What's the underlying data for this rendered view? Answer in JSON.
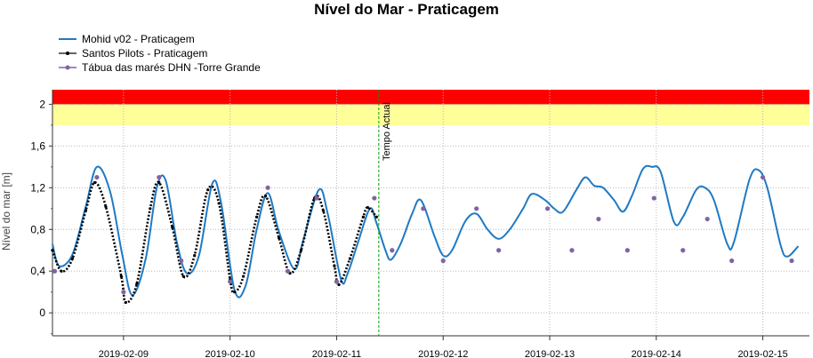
{
  "chart_data": {
    "type": "line",
    "title": "Nível do Mar - Praticagem",
    "xlabel": "",
    "ylabel": "Nível do mar [m]",
    "ylim": [
      -0.22,
      2.14
    ],
    "xlim": [
      "2019-02-08 08:00",
      "2019-02-15 10:30"
    ],
    "yticks": [
      "0",
      "0,4",
      "0,8",
      "1,2",
      "1,6",
      "2"
    ],
    "xticks": [
      "2019-02-09",
      "2019-02-10",
      "2019-02-11",
      "2019-02-12",
      "2019-02-13",
      "2019-02-14",
      "2019-02-15"
    ],
    "grid": true,
    "legend_position": "top-left",
    "bands": [
      {
        "from": 1.8,
        "to": 2.0,
        "color": "#ffff99"
      },
      {
        "from": 2.0,
        "to": 2.14,
        "color": "#ff0000"
      }
    ],
    "current_time": {
      "label": "Tempo Actual",
      "x": "2019-02-11 09:30",
      "color": "#00a000"
    },
    "series": [
      {
        "name": "Mohid v02 - Praticagem",
        "kind": "line",
        "color": "#1f7ac4",
        "points": [
          [
            "2019-02-08 08:00",
            0.66
          ],
          [
            "2019-02-08 09:30",
            0.45
          ],
          [
            "2019-02-08 12:30",
            0.56
          ],
          [
            "2019-02-08 15:30",
            1.02
          ],
          [
            "2019-02-08 18:00",
            1.4
          ],
          [
            "2019-02-08 21:00",
            1.16
          ],
          [
            "2019-02-08 23:45",
            0.55
          ],
          [
            "2019-02-09 02:00",
            0.17
          ],
          [
            "2019-02-09 05:00",
            0.52
          ],
          [
            "2019-02-09 07:30",
            1.2
          ],
          [
            "2019-02-09 09:30",
            1.27
          ],
          [
            "2019-02-09 12:00",
            0.68
          ],
          [
            "2019-02-09 14:15",
            0.38
          ],
          [
            "2019-02-09 17:00",
            0.55
          ],
          [
            "2019-02-09 20:00",
            1.24
          ],
          [
            "2019-02-09 22:00",
            1.05
          ],
          [
            "2019-02-10 01:00",
            0.22
          ],
          [
            "2019-02-10 03:30",
            0.26
          ],
          [
            "2019-02-10 06:00",
            0.8
          ],
          [
            "2019-02-10 08:30",
            1.15
          ],
          [
            "2019-02-10 11:00",
            0.78
          ],
          [
            "2019-02-10 14:30",
            0.42
          ],
          [
            "2019-02-10 16:30",
            0.7
          ],
          [
            "2019-02-10 20:00",
            1.18
          ],
          [
            "2019-02-10 22:00",
            0.95
          ],
          [
            "2019-02-11 01:00",
            0.32
          ],
          [
            "2019-02-11 02:30",
            0.38
          ],
          [
            "2019-02-11 05:00",
            0.7
          ],
          [
            "2019-02-11 07:30",
            1.0
          ],
          [
            "2019-02-11 09:00",
            0.86
          ],
          [
            "2019-02-11 11:00",
            0.6
          ],
          [
            "2019-02-11 12:15",
            0.51
          ],
          [
            "2019-02-11 14:30",
            0.67
          ],
          [
            "2019-02-11 17:00",
            0.95
          ],
          [
            "2019-02-11 19:00",
            1.08
          ],
          [
            "2019-02-11 22:00",
            0.74
          ],
          [
            "2019-02-12 00:00",
            0.55
          ],
          [
            "2019-02-12 02:00",
            0.6
          ],
          [
            "2019-02-12 05:00",
            0.88
          ],
          [
            "2019-02-12 07:30",
            0.95
          ],
          [
            "2019-02-12 10:00",
            0.8
          ],
          [
            "2019-02-12 12:30",
            0.71
          ],
          [
            "2019-02-12 15:00",
            0.8
          ],
          [
            "2019-02-12 18:00",
            1.0
          ],
          [
            "2019-02-12 20:00",
            1.14
          ],
          [
            "2019-02-12 23:00",
            1.08
          ],
          [
            "2019-02-13 01:00",
            1.0
          ],
          [
            "2019-02-13 03:00",
            0.97
          ],
          [
            "2019-02-13 06:00",
            1.18
          ],
          [
            "2019-02-13 08:00",
            1.3
          ],
          [
            "2019-02-13 10:00",
            1.22
          ],
          [
            "2019-02-13 12:00",
            1.2
          ],
          [
            "2019-02-13 14:30",
            1.08
          ],
          [
            "2019-02-13 16:30",
            0.97
          ],
          [
            "2019-02-13 18:30",
            1.12
          ],
          [
            "2019-02-13 21:00",
            1.38
          ],
          [
            "2019-02-13 23:00",
            1.4
          ],
          [
            "2019-02-14 01:00",
            1.35
          ],
          [
            "2019-02-14 04:00",
            0.87
          ],
          [
            "2019-02-14 06:00",
            0.92
          ],
          [
            "2019-02-14 09:00",
            1.18
          ],
          [
            "2019-02-14 11:00",
            1.2
          ],
          [
            "2019-02-14 13:00",
            1.08
          ],
          [
            "2019-02-14 16:00",
            0.66
          ],
          [
            "2019-02-14 17:30",
            0.68
          ],
          [
            "2019-02-14 21:00",
            1.28
          ],
          [
            "2019-02-14 23:00",
            1.37
          ],
          [
            "2019-02-15 01:00",
            1.2
          ],
          [
            "2019-02-15 04:00",
            0.65
          ],
          [
            "2019-02-15 05:30",
            0.54
          ],
          [
            "2019-02-15 08:00",
            0.64
          ]
        ]
      },
      {
        "name": "Santos Pilots - Praticagem",
        "kind": "dotted-line",
        "color": "#000000",
        "points": [
          [
            "2019-02-08 08:00",
            0.6
          ],
          [
            "2019-02-08 10:00",
            0.4
          ],
          [
            "2019-02-08 12:30",
            0.52
          ],
          [
            "2019-02-08 15:30",
            0.98
          ],
          [
            "2019-02-08 17:30",
            1.25
          ],
          [
            "2019-02-08 20:00",
            1.02
          ],
          [
            "2019-02-08 23:30",
            0.35
          ],
          [
            "2019-02-09 00:30",
            0.1
          ],
          [
            "2019-02-09 03:00",
            0.28
          ],
          [
            "2019-02-09 06:00",
            1.0
          ],
          [
            "2019-02-09 08:00",
            1.25
          ],
          [
            "2019-02-09 11:00",
            0.82
          ],
          [
            "2019-02-09 13:30",
            0.35
          ],
          [
            "2019-02-09 16:00",
            0.55
          ],
          [
            "2019-02-09 19:00",
            1.18
          ],
          [
            "2019-02-09 21:30",
            1.05
          ],
          [
            "2019-02-10 00:00",
            0.32
          ],
          [
            "2019-02-10 01:00",
            0.2
          ],
          [
            "2019-02-10 03:00",
            0.35
          ],
          [
            "2019-02-10 06:00",
            0.92
          ],
          [
            "2019-02-10 08:00",
            1.12
          ],
          [
            "2019-02-10 11:00",
            0.72
          ],
          [
            "2019-02-10 13:30",
            0.38
          ],
          [
            "2019-02-10 16:00",
            0.6
          ],
          [
            "2019-02-10 19:00",
            1.1
          ],
          [
            "2019-02-10 21:00",
            0.98
          ],
          [
            "2019-02-10 23:30",
            0.45
          ],
          [
            "2019-02-11 00:30",
            0.27
          ],
          [
            "2019-02-11 03:00",
            0.52
          ],
          [
            "2019-02-11 06:00",
            0.92
          ],
          [
            "2019-02-11 07:00",
            1.01
          ],
          [
            "2019-02-11 09:00",
            0.92
          ]
        ]
      },
      {
        "name": "Tábua das marés DHN -Torre Grande",
        "kind": "markers",
        "color": "#8064a2",
        "points": [
          [
            "2019-02-08 08:30",
            0.4
          ],
          [
            "2019-02-08 18:00",
            1.3
          ],
          [
            "2019-02-09 00:00",
            0.2
          ],
          [
            "2019-02-09 08:00",
            1.3
          ],
          [
            "2019-02-09 13:00",
            0.5
          ],
          [
            "2019-02-10 00:00",
            0.3
          ],
          [
            "2019-02-10 08:30",
            1.2
          ],
          [
            "2019-02-10 13:00",
            0.4
          ],
          [
            "2019-02-10 19:30",
            1.1
          ],
          [
            "2019-02-11 00:00",
            0.3
          ],
          [
            "2019-02-11 08:30",
            1.1
          ],
          [
            "2019-02-11 12:30",
            0.6
          ],
          [
            "2019-02-11 19:30",
            1.0
          ],
          [
            "2019-02-12 00:00",
            0.5
          ],
          [
            "2019-02-12 07:30",
            1.0
          ],
          [
            "2019-02-12 12:30",
            0.6
          ],
          [
            "2019-02-12 23:30",
            1.0
          ],
          [
            "2019-02-13 05:00",
            0.6
          ],
          [
            "2019-02-13 11:00",
            0.9
          ],
          [
            "2019-02-13 17:30",
            0.6
          ],
          [
            "2019-02-13 23:30",
            1.1
          ],
          [
            "2019-02-14 06:00",
            0.6
          ],
          [
            "2019-02-14 11:30",
            0.9
          ],
          [
            "2019-02-14 17:00",
            0.5
          ],
          [
            "2019-02-15 00:00",
            1.3
          ],
          [
            "2019-02-15 06:30",
            0.5
          ]
        ]
      }
    ]
  }
}
